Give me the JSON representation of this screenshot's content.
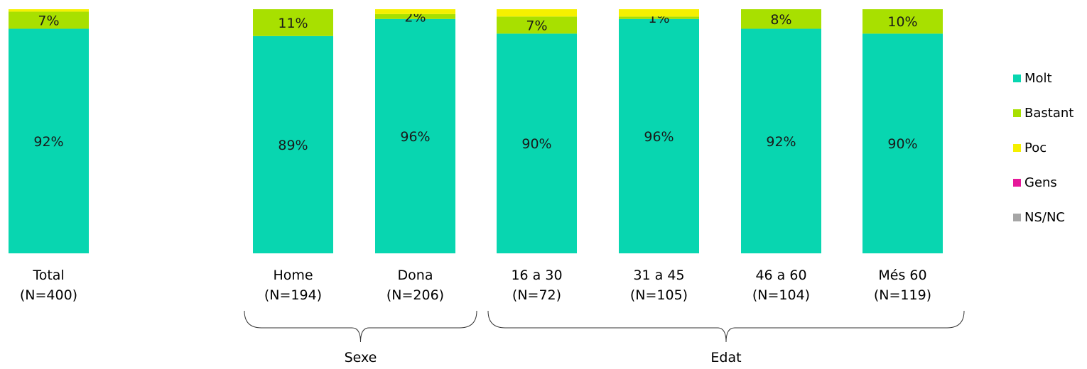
{
  "chart_data": {
    "type": "bar",
    "stacked": true,
    "ylim": [
      0,
      100
    ],
    "categories": [
      {
        "name": "Total",
        "n": "(N=400)"
      },
      {
        "name": "Home",
        "n": "(N=194)"
      },
      {
        "name": "Dona",
        "n": "(N=206)"
      },
      {
        "name": "16 a 30",
        "n": "(N=72)"
      },
      {
        "name": "31 a 45",
        "n": "(N=105)"
      },
      {
        "name": "46 a 60",
        "n": "(N=104)"
      },
      {
        "name": "Més 60",
        "n": "(N=119)"
      }
    ],
    "series": [
      {
        "name": "Molt",
        "color": "#08D6B0",
        "values": [
          92,
          89,
          96,
          90,
          96,
          92,
          90
        ],
        "labels": [
          "92%",
          "89%",
          "96%",
          "90%",
          "96%",
          "92%",
          "90%"
        ]
      },
      {
        "name": "Bastant",
        "color": "#A8E000",
        "values": [
          7,
          11,
          2,
          7,
          1,
          8,
          10
        ],
        "labels": [
          "7%",
          "11%",
          "2%",
          "7%",
          "1%",
          "8%",
          "10%"
        ]
      },
      {
        "name": "Poc",
        "color": "#F5F000",
        "values": [
          1,
          0,
          2,
          3,
          3,
          0,
          0
        ],
        "labels": [
          "",
          "",
          "",
          "",
          "",
          "",
          ""
        ]
      },
      {
        "name": "Gens",
        "color": "#E6189A",
        "values": [
          0,
          0,
          0,
          0,
          0,
          0,
          0
        ],
        "labels": [
          "",
          "",
          "",
          "",
          "",
          "",
          ""
        ]
      },
      {
        "name": "NS/NC",
        "color": "#A6A6A6",
        "values": [
          0,
          0,
          0,
          0,
          0,
          0,
          0
        ],
        "labels": [
          "",
          "",
          "",
          "",
          "",
          "",
          ""
        ]
      }
    ],
    "groups": [
      {
        "label": "Sexe",
        "from": 1,
        "to": 2
      },
      {
        "label": "Edat",
        "from": 3,
        "to": 6
      }
    ],
    "legend_position": "right"
  }
}
